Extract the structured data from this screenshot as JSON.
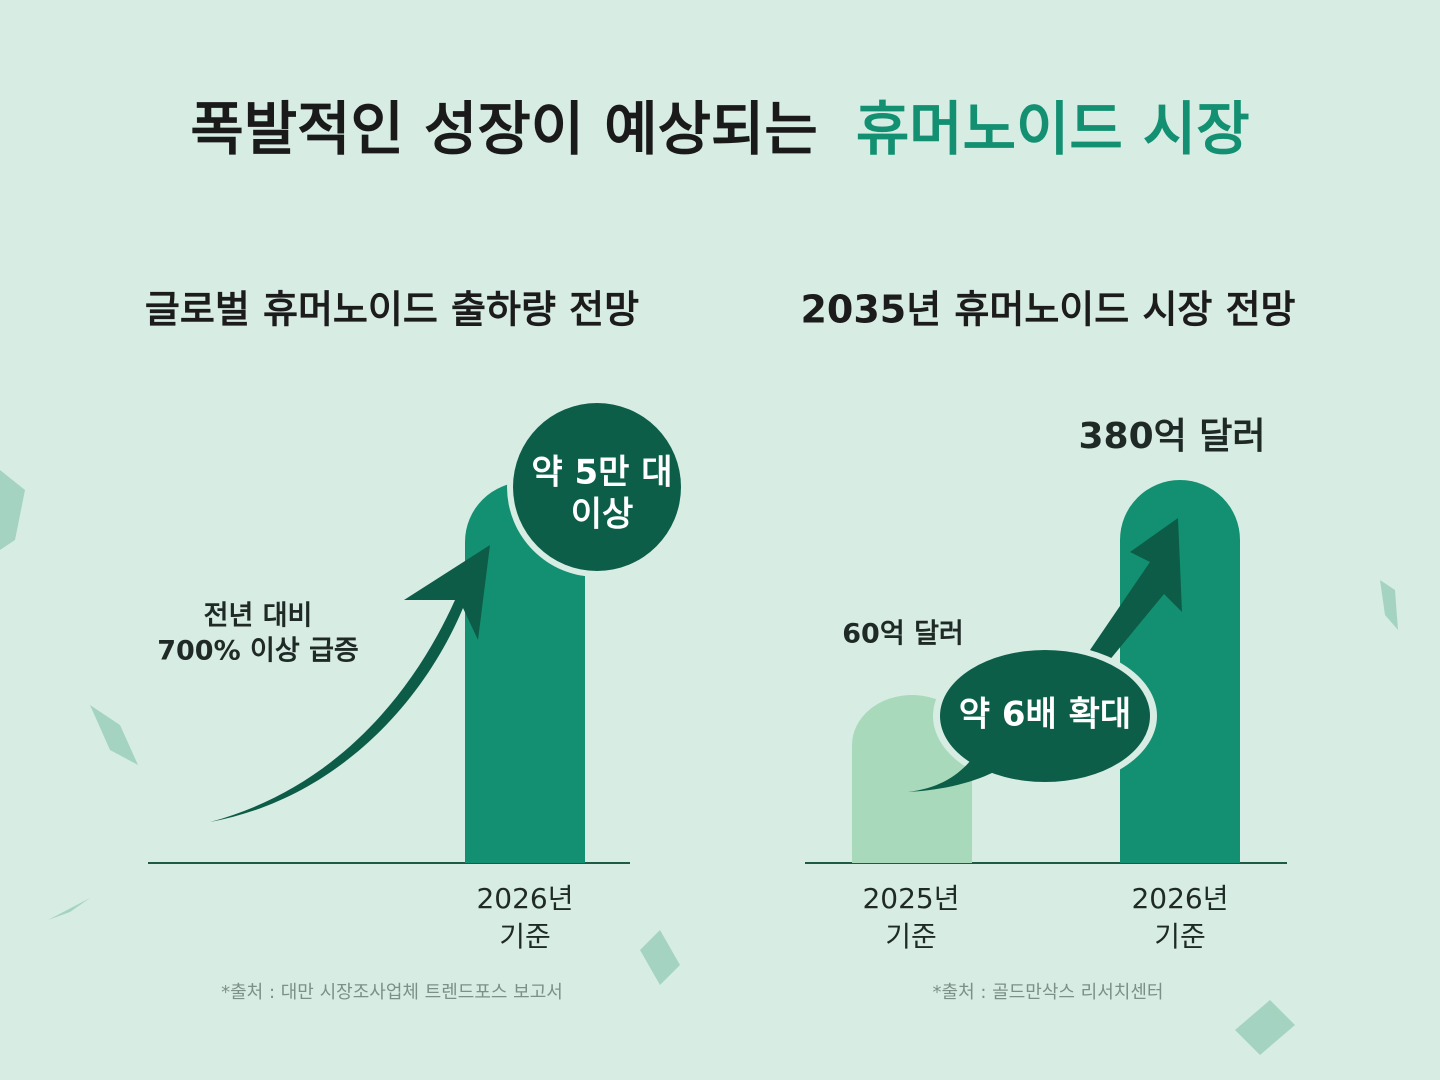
{
  "title": {
    "lead": "폭발적인 성장이 예상되는",
    "highlight": "휴머노이드 시장"
  },
  "panels": [
    {
      "heading": "글로벌 휴머노이드 출하량 전망",
      "bubble": [
        "약 5만 대",
        "이상"
      ],
      "note": [
        "전년 대비",
        "700% 이상 급증"
      ],
      "bars": [
        {
          "label": [
            "2026년",
            "기준"
          ]
        }
      ],
      "source": "*출처 : 대만 시장조사업체 트렌드포스 보고서"
    },
    {
      "heading": "2035년 휴머노이드 시장 전망",
      "bubble": [
        "약 6배 확대"
      ],
      "bars": [
        {
          "label": [
            "2025년",
            "기준"
          ],
          "value_label": "60억 달러"
        },
        {
          "label": [
            "2026년",
            "기준"
          ],
          "value_label": "380억 달러"
        }
      ],
      "source": "*출처 : 골드만삭스 리서치센터"
    }
  ]
}
